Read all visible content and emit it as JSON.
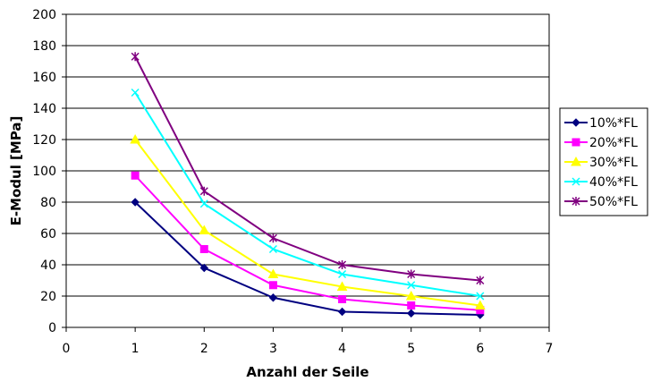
{
  "chart_data": {
    "type": "line",
    "xlabel": "Anzahl der Seile",
    "ylabel": "E-Modul [MPa]",
    "xlim": [
      0,
      7
    ],
    "ylim": [
      0,
      200
    ],
    "xticks": [
      0,
      1,
      2,
      3,
      4,
      5,
      6,
      7
    ],
    "yticks": [
      0,
      20,
      40,
      60,
      80,
      100,
      120,
      140,
      160,
      180,
      200
    ],
    "grid": "horizontal",
    "legend_position": "right",
    "x": [
      1,
      2,
      3,
      4,
      5,
      6
    ],
    "series": [
      {
        "name": "10%*FL",
        "color": "#000080",
        "marker": "diamond",
        "values": [
          80,
          38,
          19,
          10,
          9,
          8
        ]
      },
      {
        "name": "20%*FL",
        "color": "#FF00FF",
        "marker": "square",
        "values": [
          97,
          50,
          27,
          18,
          14,
          11
        ]
      },
      {
        "name": "30%*FL",
        "color": "#FFFF00",
        "marker": "triangle",
        "values": [
          120,
          62,
          34,
          26,
          20,
          14
        ]
      },
      {
        "name": "40%*FL",
        "color": "#00FFFF",
        "marker": "x",
        "values": [
          150,
          79,
          50,
          34,
          27,
          20
        ]
      },
      {
        "name": "50%*FL",
        "color": "#800080",
        "marker": "star",
        "values": [
          173,
          87,
          57,
          40,
          34,
          30
        ]
      }
    ]
  }
}
